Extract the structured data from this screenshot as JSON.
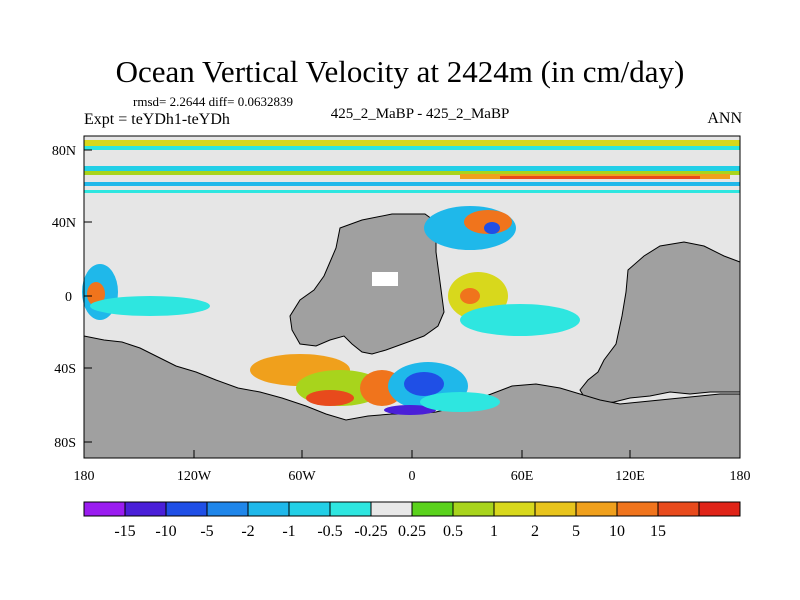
{
  "title": "Ocean Vertical Velocity at 2424m (in cm/day)",
  "stats_text": "rmsd= 2.2644 diff= 0.0632839",
  "left_label": "Expt = teYDh1-teYDh",
  "center_label": "425_2_MaBP - 425_2_MaBP",
  "right_label": "ANN",
  "map": {
    "lat_ticks": [
      "80N",
      "40N",
      "0",
      "40S",
      "80S"
    ],
    "lon_ticks": [
      "180",
      "120W",
      "60W",
      "0",
      "60E",
      "120E",
      "180"
    ],
    "colors": {
      "land": "#a0a0a0",
      "ocean_neutral": "#e6e6e6",
      "border": "#000000"
    }
  },
  "colorbar": {
    "colors": [
      "#9a1cf0",
      "#4a1fd8",
      "#1f4fe6",
      "#1f86ea",
      "#1fb8ea",
      "#22cfe6",
      "#2ee6e0",
      "#e8e8e8",
      "#5ad21c",
      "#a8d41c",
      "#d8d81c",
      "#e8c41c",
      "#f0a01c",
      "#f0741c",
      "#e84a1c",
      "#e02418"
    ],
    "labels": [
      "-15",
      "-10",
      "-5",
      "-2",
      "-1",
      "-0.5",
      "-0.25",
      "0.25",
      "0.5",
      "1",
      "2",
      "5",
      "10",
      "15"
    ]
  }
}
